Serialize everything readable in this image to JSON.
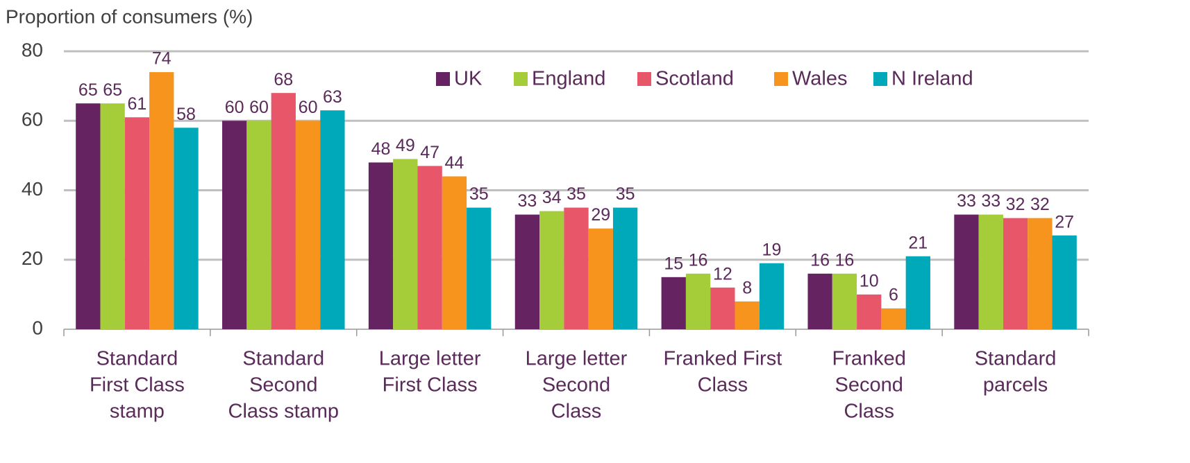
{
  "chart_data": {
    "type": "bar",
    "ylabel": "Proportion of consumers (%)",
    "categories": [
      [
        "Standard",
        "First Class",
        "stamp"
      ],
      [
        "Standard",
        "Second",
        "Class stamp"
      ],
      [
        "Large letter",
        "First Class"
      ],
      [
        "Large letter",
        "Second",
        "Class"
      ],
      [
        "Franked First",
        "Class"
      ],
      [
        "Franked",
        "Second",
        "Class"
      ],
      [
        "Standard",
        "parcels"
      ]
    ],
    "series": [
      {
        "name": "UK",
        "color": "#652361",
        "values": [
          65,
          60,
          48,
          33,
          15,
          16,
          33
        ]
      },
      {
        "name": "England",
        "color": "#a5cd39",
        "values": [
          65,
          60,
          49,
          34,
          16,
          16,
          33
        ]
      },
      {
        "name": "Scotland",
        "color": "#e8566a",
        "values": [
          61,
          68,
          47,
          35,
          12,
          10,
          32
        ]
      },
      {
        "name": "Wales",
        "color": "#f7941d",
        "values": [
          74,
          60,
          44,
          29,
          8,
          6,
          32
        ]
      },
      {
        "name": "N Ireland",
        "color": "#00a9b9",
        "values": [
          58,
          63,
          35,
          35,
          19,
          21,
          27
        ]
      }
    ],
    "ylim": [
      0,
      80
    ],
    "yticks": [
      0,
      20,
      40,
      60,
      80
    ],
    "grid": true,
    "legend": "top-right"
  }
}
